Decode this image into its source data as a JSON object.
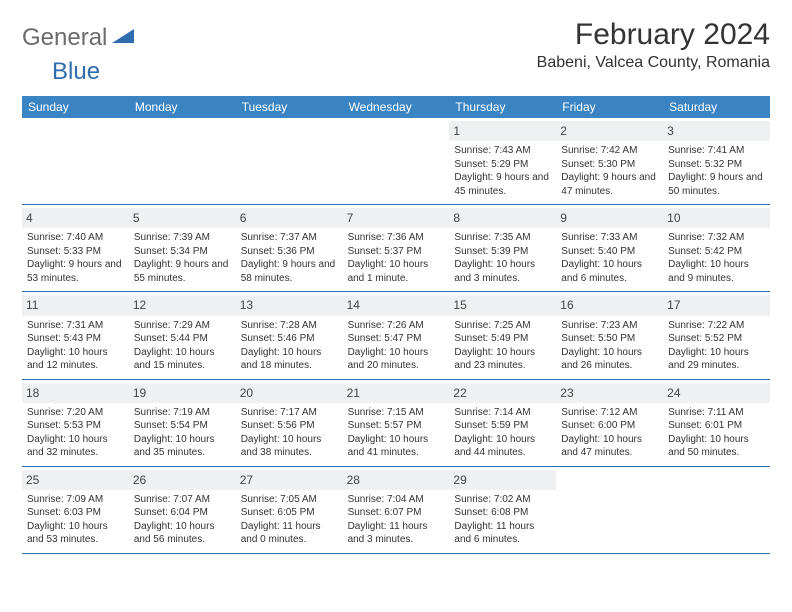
{
  "logo": {
    "word1": "General",
    "word2": "Blue"
  },
  "title": "February 2024",
  "location": "Babeni, Valcea County, Romania",
  "colors": {
    "header_bg": "#3a84c4",
    "border": "#2f6daf",
    "daynum_bg": "#eef0f2",
    "text": "#333333",
    "logo_gray": "#6b6b6b",
    "logo_blue": "#2f6daf"
  },
  "weekdays": [
    "Sunday",
    "Monday",
    "Tuesday",
    "Wednesday",
    "Thursday",
    "Friday",
    "Saturday"
  ],
  "weeks": [
    [
      null,
      null,
      null,
      null,
      {
        "n": "1",
        "sr": "7:43 AM",
        "ss": "5:29 PM",
        "dl": "9 hours and 45 minutes."
      },
      {
        "n": "2",
        "sr": "7:42 AM",
        "ss": "5:30 PM",
        "dl": "9 hours and 47 minutes."
      },
      {
        "n": "3",
        "sr": "7:41 AM",
        "ss": "5:32 PM",
        "dl": "9 hours and 50 minutes."
      }
    ],
    [
      {
        "n": "4",
        "sr": "7:40 AM",
        "ss": "5:33 PM",
        "dl": "9 hours and 53 minutes."
      },
      {
        "n": "5",
        "sr": "7:39 AM",
        "ss": "5:34 PM",
        "dl": "9 hours and 55 minutes."
      },
      {
        "n": "6",
        "sr": "7:37 AM",
        "ss": "5:36 PM",
        "dl": "9 hours and 58 minutes."
      },
      {
        "n": "7",
        "sr": "7:36 AM",
        "ss": "5:37 PM",
        "dl": "10 hours and 1 minute."
      },
      {
        "n": "8",
        "sr": "7:35 AM",
        "ss": "5:39 PM",
        "dl": "10 hours and 3 minutes."
      },
      {
        "n": "9",
        "sr": "7:33 AM",
        "ss": "5:40 PM",
        "dl": "10 hours and 6 minutes."
      },
      {
        "n": "10",
        "sr": "7:32 AM",
        "ss": "5:42 PM",
        "dl": "10 hours and 9 minutes."
      }
    ],
    [
      {
        "n": "11",
        "sr": "7:31 AM",
        "ss": "5:43 PM",
        "dl": "10 hours and 12 minutes."
      },
      {
        "n": "12",
        "sr": "7:29 AM",
        "ss": "5:44 PM",
        "dl": "10 hours and 15 minutes."
      },
      {
        "n": "13",
        "sr": "7:28 AM",
        "ss": "5:46 PM",
        "dl": "10 hours and 18 minutes."
      },
      {
        "n": "14",
        "sr": "7:26 AM",
        "ss": "5:47 PM",
        "dl": "10 hours and 20 minutes."
      },
      {
        "n": "15",
        "sr": "7:25 AM",
        "ss": "5:49 PM",
        "dl": "10 hours and 23 minutes."
      },
      {
        "n": "16",
        "sr": "7:23 AM",
        "ss": "5:50 PM",
        "dl": "10 hours and 26 minutes."
      },
      {
        "n": "17",
        "sr": "7:22 AM",
        "ss": "5:52 PM",
        "dl": "10 hours and 29 minutes."
      }
    ],
    [
      {
        "n": "18",
        "sr": "7:20 AM",
        "ss": "5:53 PM",
        "dl": "10 hours and 32 minutes."
      },
      {
        "n": "19",
        "sr": "7:19 AM",
        "ss": "5:54 PM",
        "dl": "10 hours and 35 minutes."
      },
      {
        "n": "20",
        "sr": "7:17 AM",
        "ss": "5:56 PM",
        "dl": "10 hours and 38 minutes."
      },
      {
        "n": "21",
        "sr": "7:15 AM",
        "ss": "5:57 PM",
        "dl": "10 hours and 41 minutes."
      },
      {
        "n": "22",
        "sr": "7:14 AM",
        "ss": "5:59 PM",
        "dl": "10 hours and 44 minutes."
      },
      {
        "n": "23",
        "sr": "7:12 AM",
        "ss": "6:00 PM",
        "dl": "10 hours and 47 minutes."
      },
      {
        "n": "24",
        "sr": "7:11 AM",
        "ss": "6:01 PM",
        "dl": "10 hours and 50 minutes."
      }
    ],
    [
      {
        "n": "25",
        "sr": "7:09 AM",
        "ss": "6:03 PM",
        "dl": "10 hours and 53 minutes."
      },
      {
        "n": "26",
        "sr": "7:07 AM",
        "ss": "6:04 PM",
        "dl": "10 hours and 56 minutes."
      },
      {
        "n": "27",
        "sr": "7:05 AM",
        "ss": "6:05 PM",
        "dl": "11 hours and 0 minutes."
      },
      {
        "n": "28",
        "sr": "7:04 AM",
        "ss": "6:07 PM",
        "dl": "11 hours and 3 minutes."
      },
      {
        "n": "29",
        "sr": "7:02 AM",
        "ss": "6:08 PM",
        "dl": "11 hours and 6 minutes."
      },
      null,
      null
    ]
  ],
  "labels": {
    "sunrise": "Sunrise: ",
    "sunset": "Sunset: ",
    "daylight": "Daylight: "
  }
}
